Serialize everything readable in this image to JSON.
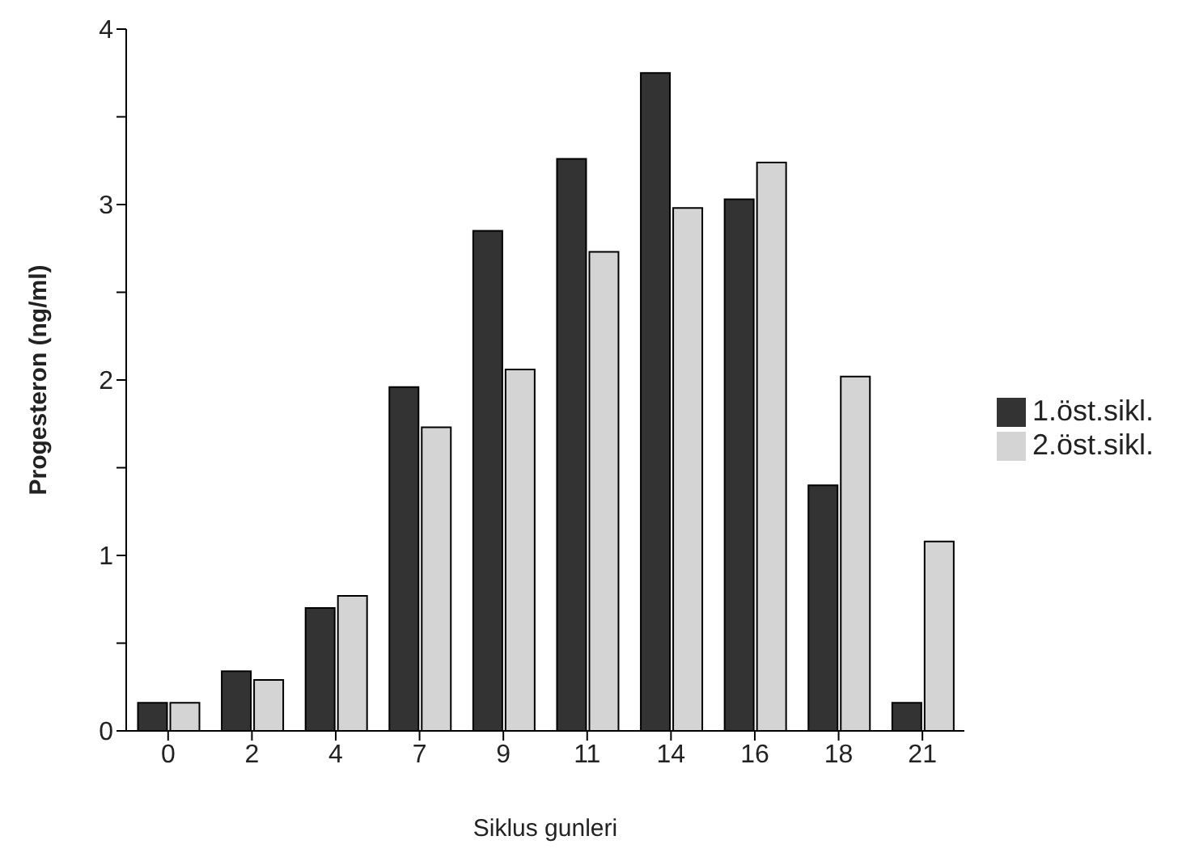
{
  "chart_data": {
    "type": "bar",
    "xlabel": "Siklus gunleri",
    "ylabel": "Progesteron (ng/ml)",
    "categories": [
      "0",
      "2",
      "4",
      "7",
      "9",
      "11",
      "14",
      "16",
      "18",
      "21"
    ],
    "series": [
      {
        "name": "1.öst.sikl.",
        "color": "#333333",
        "values": [
          0.16,
          0.34,
          0.7,
          1.96,
          2.85,
          3.26,
          3.75,
          3.03,
          1.4,
          0.16
        ]
      },
      {
        "name": "2.öst.sikl.",
        "color": "#d4d4d4",
        "values": [
          0.16,
          0.29,
          0.77,
          1.73,
          2.06,
          2.73,
          2.98,
          3.24,
          2.02,
          1.08
        ]
      }
    ],
    "ylim": [
      0,
      4
    ],
    "yticks": [
      0,
      {
        "value": 0.5,
        "label": null
      },
      1,
      {
        "value": 1.5,
        "label": null
      },
      2,
      {
        "value": 2.5,
        "label": null
      },
      3,
      {
        "value": 3.5,
        "label": null
      },
      4
    ],
    "legend": "right",
    "grid": false
  }
}
